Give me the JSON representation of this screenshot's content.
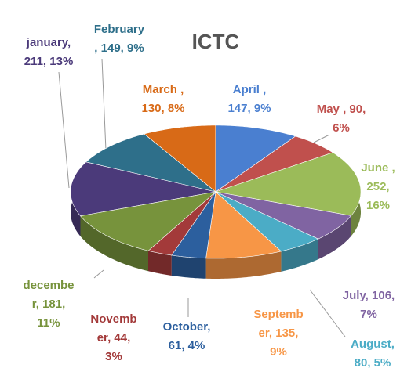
{
  "chart_data": {
    "type": "pie",
    "title": "ICTC",
    "values": [
      211,
      149,
      130,
      147,
      90,
      252,
      106,
      80,
      135,
      61,
      44,
      181
    ],
    "labels": [
      [
        "january,",
        "211, 13%"
      ],
      [
        "February",
        ", 149, 9%"
      ],
      [
        "March ,",
        "130, 8%"
      ],
      [
        "April ,",
        "147, 9%"
      ],
      [
        "May , 90,",
        "6%"
      ],
      [
        "June ,",
        "252,",
        "16%"
      ],
      [
        "July, 106,",
        "7%"
      ],
      [
        "August,",
        "80, 5%"
      ],
      [
        "Septemb",
        "er, 135,",
        "9%"
      ],
      [
        "October,",
        "61, 4%"
      ],
      [
        "Novemb",
        "er, 44,",
        "3%"
      ],
      [
        "decembe",
        "r, 181,",
        "11%"
      ]
    ],
    "colors": [
      "#4b3a7a",
      "#2e6f8a",
      "#d86a17",
      "#4a7fd0",
      "#c0504d",
      "#9bbb59",
      "#8064a2",
      "#4bacc6",
      "#f79646",
      "#2c5f9e",
      "#a33a3a",
      "#77933c"
    ]
  }
}
